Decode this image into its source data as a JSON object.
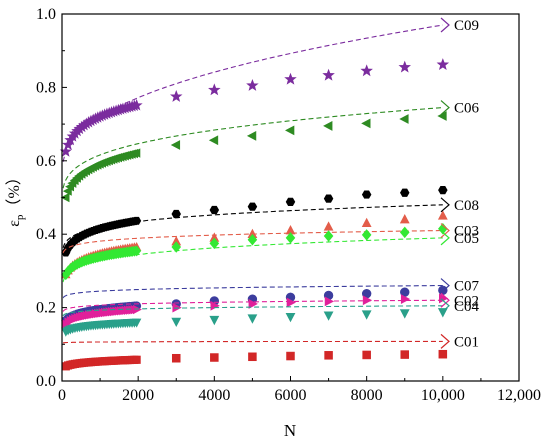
{
  "chart_data": {
    "type": "scatter",
    "xlabel": "N",
    "ylabel_symbol": "ε",
    "ylabel_sub": "p",
    "ylabel_unit": "（%）",
    "xlim": [
      0,
      12000
    ],
    "ylim": [
      0.0,
      1.0
    ],
    "x_ticks": [
      0,
      2000,
      4000,
      6000,
      8000,
      10000,
      12000
    ],
    "x_tick_labels": [
      "0",
      "2000",
      "4000",
      "6000",
      "8000",
      "10,000",
      "12,000"
    ],
    "y_ticks": [
      0.0,
      0.2,
      0.4,
      0.6,
      0.8,
      1.0
    ],
    "y_tick_labels": [
      "0.0",
      "0.2",
      "0.4",
      "0.6",
      "0.8",
      "1.0"
    ],
    "grid": false,
    "legend": "callout labels on right side",
    "series": [
      {
        "name": "C09",
        "marker": "star",
        "color": "#7B2C9E",
        "dense": {
          "y100": 0.625,
          "y2000": 0.752
        },
        "x": [
          3000,
          4000,
          5000,
          6000,
          7000,
          8000,
          9000,
          10000
        ],
        "y": [
          0.775,
          0.793,
          0.805,
          0.822,
          0.833,
          0.845,
          0.855,
          0.862
        ],
        "fit": {
          "a": 0.56,
          "b": 0.41,
          "d": 0.97
        }
      },
      {
        "name": "C06",
        "marker": "triangle-left",
        "color": "#2E8B22",
        "dense": {
          "y100": 0.5,
          "y2000": 0.622
        },
        "x": [
          3000,
          4000,
          5000,
          6000,
          7000,
          8000,
          9000,
          10000
        ],
        "y": [
          0.643,
          0.656,
          0.668,
          0.683,
          0.695,
          0.702,
          0.714,
          0.722
        ],
        "fit": {
          "a": 0.47,
          "b": 0.275,
          "d": 0.745
        }
      },
      {
        "name": "C08",
        "marker": "hexagon",
        "color": "#000000",
        "dense": {
          "y100": 0.35,
          "y2000": 0.437
        },
        "x": [
          3000,
          4000,
          5000,
          6000,
          7000,
          8000,
          9000,
          10000
        ],
        "y": [
          0.455,
          0.466,
          0.475,
          0.488,
          0.497,
          0.508,
          0.513,
          0.52
        ],
        "fit": {
          "a": 0.3,
          "b": 0.18,
          "d": 0.48
        }
      },
      {
        "name": "C03",
        "marker": "triangle-up",
        "color": "#E35D4A",
        "dense": {
          "y100": 0.29,
          "y2000": 0.365
        },
        "x": [
          3000,
          4000,
          5000,
          6000,
          7000,
          8000,
          9000,
          10000
        ],
        "y": [
          0.38,
          0.39,
          0.4,
          0.41,
          0.42,
          0.43,
          0.44,
          0.45
        ],
        "fit": {
          "a": 0.29,
          "b": 0.12,
          "d": 0.41
        }
      },
      {
        "name": "C05",
        "marker": "diamond",
        "color": "#33E833",
        "dense": {
          "y100": 0.29,
          "y2000": 0.355
        },
        "x": [
          3000,
          4000,
          5000,
          6000,
          7000,
          8000,
          9000,
          10000
        ],
        "y": [
          0.365,
          0.375,
          0.385,
          0.39,
          0.395,
          0.398,
          0.405,
          0.415
        ],
        "fit": {
          "a": 0.2,
          "b": 0.17,
          "d": 0.39
        }
      },
      {
        "name": "C07",
        "marker": "circle",
        "color": "#3C3D9E",
        "dense": {
          "y100": 0.165,
          "y2000": 0.205
        },
        "x": [
          3000,
          4000,
          5000,
          6000,
          7000,
          8000,
          9000,
          10000
        ],
        "y": [
          0.21,
          0.218,
          0.223,
          0.228,
          0.233,
          0.238,
          0.242,
          0.247
        ],
        "fit": {
          "a": 0.175,
          "b": 0.085,
          "d": 0.26
        }
      },
      {
        "name": "C02",
        "marker": "triangle-right",
        "color": "#E0209A",
        "dense": {
          "y100": 0.155,
          "y2000": 0.195
        },
        "x": [
          3000,
          4000,
          5000,
          6000,
          7000,
          8000,
          9000,
          10000
        ],
        "y": [
          0.2,
          0.205,
          0.21,
          0.214,
          0.217,
          0.22,
          0.223,
          0.225
        ],
        "fit": {
          "a": 0.14,
          "b": 0.08,
          "d": 0.22
        }
      },
      {
        "name": "C04",
        "marker": "triangle-down",
        "color": "#2AA08A",
        "dense": {
          "y100": 0.135,
          "y2000": 0.16
        },
        "x": [
          3000,
          4000,
          5000,
          6000,
          7000,
          8000,
          9000,
          10000
        ],
        "y": [
          0.162,
          0.167,
          0.171,
          0.175,
          0.179,
          0.182,
          0.185,
          0.188
        ],
        "fit": {
          "a": 0.13,
          "b": 0.075,
          "d": 0.205
        }
      },
      {
        "name": "C01",
        "marker": "square",
        "color": "#D22727",
        "dense": {
          "y100": 0.04,
          "y2000": 0.058
        },
        "x": [
          3000,
          4000,
          5000,
          6000,
          7000,
          8000,
          9000,
          10000
        ],
        "y": [
          0.062,
          0.064,
          0.066,
          0.068,
          0.07,
          0.071,
          0.072,
          0.073
        ],
        "fit": {
          "a": 0.082,
          "b": 0.03,
          "d": 0.108
        }
      }
    ]
  }
}
